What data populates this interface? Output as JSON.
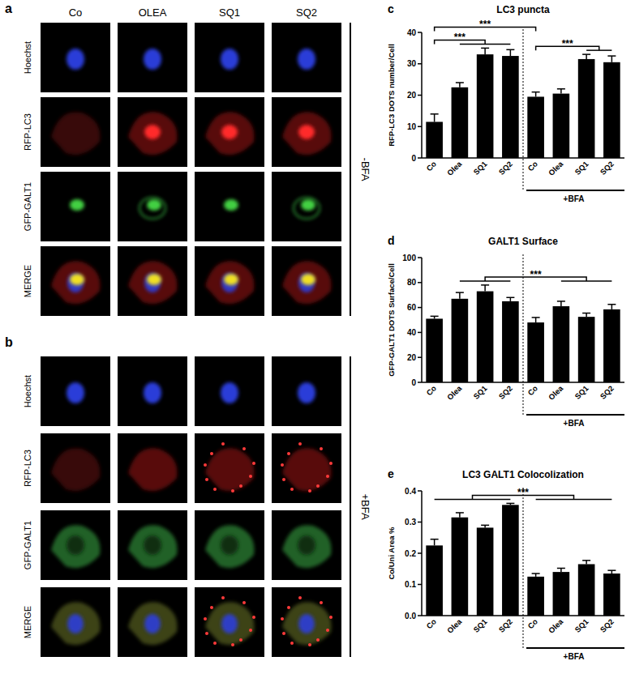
{
  "micrographs": [
    {
      "panel": "a",
      "columns": [
        "Co",
        "OLEA",
        "SQ1",
        "SQ2"
      ],
      "rows": [
        "Hoechst",
        "RFP-LC3",
        "GFP-GALT1",
        "MERGE"
      ],
      "condition": "-BFA"
    },
    {
      "panel": "b",
      "rows": [
        "Hoechst",
        "RFP-LC3",
        "GFP-GALT1",
        "MERGE"
      ],
      "condition": "+BFA"
    }
  ],
  "chart_data": [
    {
      "type": "bar",
      "panel": "c",
      "title": "LC3 puncta",
      "y_label": "RFP-LC3 DOTS number/Cell",
      "categories": [
        "Co",
        "Olea",
        "SQ1",
        "SQ2",
        "Co",
        "Olea",
        "SQ1",
        "SQ2"
      ],
      "values": [
        11.5,
        22.5,
        33,
        32.5,
        19.5,
        20.5,
        31.5,
        30.5
      ],
      "errors": [
        2.5,
        1.5,
        2,
        2,
        1.5,
        1.5,
        1.5,
        2
      ],
      "color": "#000000",
      "ylim": [
        0,
        40
      ],
      "yticks": [
        0,
        10,
        20,
        30,
        40
      ],
      "group_label": "+BFA",
      "significance": [
        {
          "label": "***",
          "from": [
            0,
            0
          ],
          "to": [
            1,
            3
          ]
        },
        {
          "label": "***",
          "from": [
            4,
            4
          ],
          "to": [
            6,
            7
          ]
        },
        {
          "label": "***",
          "from": [
            0,
            0
          ],
          "to": [
            4,
            4
          ]
        }
      ]
    },
    {
      "type": "bar",
      "panel": "d",
      "title": "GALT1 Surface",
      "y_label": "GFP-GALT1 DOTS Surface/Cell",
      "categories": [
        "Co",
        "Olea",
        "SQ1",
        "SQ2",
        "Co",
        "Olea",
        "SQ1",
        "SQ2"
      ],
      "values": [
        51,
        67,
        73,
        65,
        48,
        61,
        52.5,
        58.5
      ],
      "errors": [
        2,
        5,
        5,
        3,
        4,
        4,
        3,
        4
      ],
      "color": "#000000",
      "ylim": [
        0,
        100
      ],
      "yticks": [
        0,
        20,
        40,
        60,
        80,
        100
      ],
      "group_label": "+BFA",
      "significance": [
        {
          "label": "***",
          "from": [
            1,
            3
          ],
          "to": [
            5,
            7
          ]
        }
      ]
    },
    {
      "type": "bar",
      "panel": "e",
      "title": "LC3 GALT1 Colocolization",
      "y_label": "Co/Uni Area %",
      "categories": [
        "Co",
        "Olea",
        "SQ1",
        "SQ2",
        "Co",
        "Olea",
        "SQ1",
        "SQ2"
      ],
      "values": [
        0.225,
        0.315,
        0.282,
        0.355,
        0.125,
        0.14,
        0.165,
        0.135
      ],
      "errors": [
        0.02,
        0.015,
        0.008,
        0.005,
        0.01,
        0.012,
        0.012,
        0.01
      ],
      "color": "#000000",
      "ylim": [
        0,
        0.4
      ],
      "yticks": [
        {
          "value": 0,
          "label": "0.0"
        },
        0.1,
        0.2,
        0.3,
        0.4
      ],
      "group_label": "+BFA",
      "significance": [
        {
          "label": "***",
          "from": [
            0,
            3
          ],
          "to": [
            4,
            7
          ]
        }
      ]
    }
  ]
}
